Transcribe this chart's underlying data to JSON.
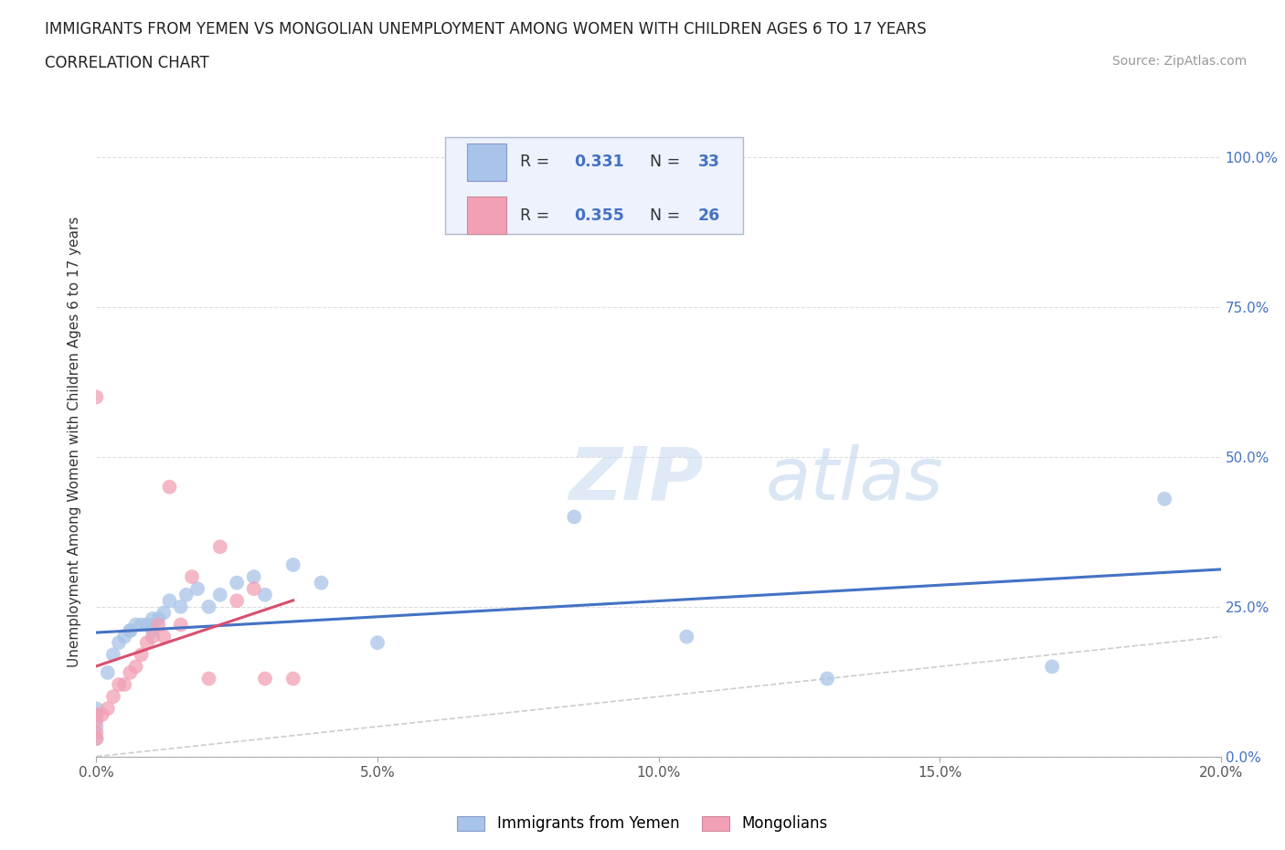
{
  "title_line1": "IMMIGRANTS FROM YEMEN VS MONGOLIAN UNEMPLOYMENT AMONG WOMEN WITH CHILDREN AGES 6 TO 17 YEARS",
  "title_line2": "CORRELATION CHART",
  "source": "Source: ZipAtlas.com",
  "ylabel": "Unemployment Among Women with Children Ages 6 to 17 years",
  "xlim": [
    0.0,
    0.2
  ],
  "ylim": [
    0.0,
    1.05
  ],
  "xticks": [
    0.0,
    0.05,
    0.1,
    0.15,
    0.2
  ],
  "xticklabels": [
    "0.0%",
    "5.0%",
    "10.0%",
    "15.0%",
    "20.0%"
  ],
  "yticks": [
    0.0,
    0.25,
    0.5,
    0.75,
    1.0
  ],
  "right_yticklabels": [
    "0.0%",
    "25.0%",
    "50.0%",
    "75.0%",
    "100.0%"
  ],
  "legend_r1_val": "0.331",
  "legend_n1_val": "33",
  "legend_r2_val": "0.355",
  "legend_n2_val": "26",
  "color_blue": "#a8c4e8",
  "color_pink": "#f2a0b5",
  "color_blue_line": "#4472c4",
  "color_pink_line": "#d94f6e",
  "color_diag": "#cccccc",
  "watermark_zip": "ZIP",
  "watermark_atlas": "atlas",
  "yemen_x": [
    0.0,
    0.0,
    0.0,
    0.002,
    0.003,
    0.004,
    0.005,
    0.006,
    0.006,
    0.007,
    0.008,
    0.009,
    0.01,
    0.01,
    0.011,
    0.012,
    0.013,
    0.015,
    0.016,
    0.018,
    0.02,
    0.022,
    0.025,
    0.028,
    0.03,
    0.035,
    0.04,
    0.05,
    0.085,
    0.105,
    0.13,
    0.17,
    0.19
  ],
  "yemen_y": [
    0.03,
    0.05,
    0.08,
    0.14,
    0.17,
    0.19,
    0.2,
    0.21,
    0.21,
    0.22,
    0.22,
    0.22,
    0.21,
    0.23,
    0.23,
    0.24,
    0.26,
    0.25,
    0.27,
    0.28,
    0.25,
    0.27,
    0.29,
    0.3,
    0.27,
    0.32,
    0.29,
    0.19,
    0.4,
    0.2,
    0.13,
    0.15,
    0.43
  ],
  "mongolia_x": [
    0.0,
    0.0,
    0.0,
    0.0,
    0.0,
    0.001,
    0.002,
    0.003,
    0.004,
    0.005,
    0.006,
    0.007,
    0.008,
    0.009,
    0.01,
    0.011,
    0.012,
    0.013,
    0.015,
    0.017,
    0.02,
    0.022,
    0.025,
    0.028,
    0.03,
    0.035
  ],
  "mongolia_y": [
    0.03,
    0.04,
    0.06,
    0.07,
    0.6,
    0.07,
    0.08,
    0.1,
    0.12,
    0.12,
    0.14,
    0.15,
    0.17,
    0.19,
    0.2,
    0.22,
    0.2,
    0.45,
    0.22,
    0.3,
    0.13,
    0.35,
    0.26,
    0.28,
    0.13,
    0.13
  ]
}
